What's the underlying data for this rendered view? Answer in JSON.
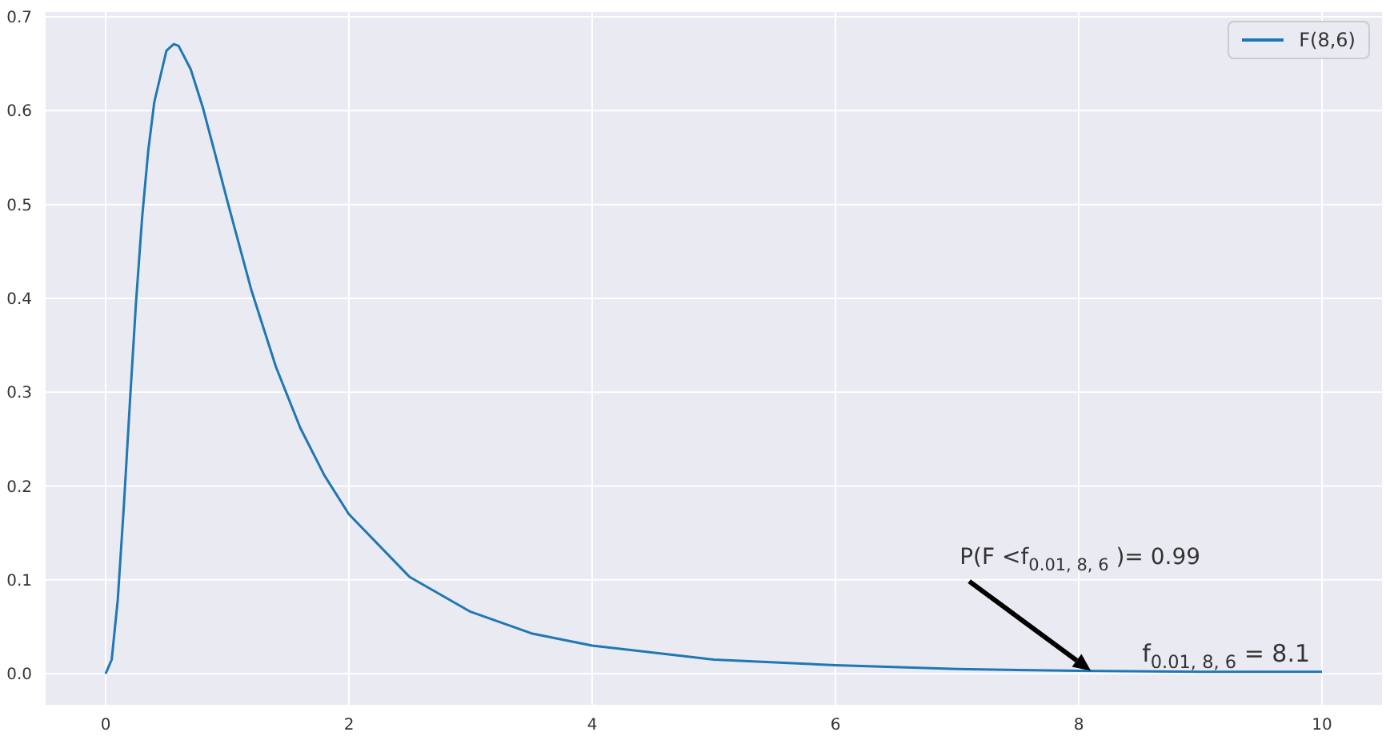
{
  "chart_data": {
    "type": "line",
    "x": [
      0,
      0.05,
      0.1,
      0.15,
      0.2,
      0.25,
      0.3,
      0.35,
      0.4,
      0.5,
      0.56,
      0.6,
      0.7,
      0.8,
      0.9,
      1.0,
      1.2,
      1.4,
      1.6,
      1.8,
      2.0,
      2.5,
      3,
      3.5,
      4,
      5,
      6,
      7,
      8,
      9,
      10
    ],
    "series": [
      {
        "name": "F(8,6)",
        "color": "#1f77b4",
        "values": [
          0,
          0.015,
          0.079,
          0.179,
          0.29,
          0.396,
          0.486,
          0.557,
          0.609,
          0.664,
          0.671,
          0.669,
          0.644,
          0.603,
          0.554,
          0.504,
          0.408,
          0.327,
          0.262,
          0.211,
          0.17,
          0.103,
          0.066,
          0.043,
          0.03,
          0.015,
          0.009,
          0.005,
          0.003,
          0.002,
          0.002
        ]
      }
    ],
    "xlim": [
      -0.5,
      10.5
    ],
    "xticks": [
      0,
      2,
      4,
      6,
      8,
      10
    ],
    "ylim": [
      -0.034,
      0.706
    ],
    "yticks": [
      {
        "value": 0,
        "label": "0.0"
      },
      {
        "value": 0.1,
        "label": "0.1"
      },
      {
        "value": 0.2,
        "label": "0.2"
      },
      {
        "value": 0.3,
        "label": "0.3"
      },
      {
        "value": 0.4,
        "label": "0.4"
      },
      {
        "value": 0.5,
        "label": "0.5"
      },
      {
        "value": 0.6,
        "label": "0.6"
      },
      {
        "value": 0.7,
        "label": "0.7"
      }
    ],
    "grid": true,
    "legend": "top right",
    "marker": "none",
    "line_style": "solid",
    "annotations": [
      "P(F <f$_{0.01, 8, 6}$)= 0.99",
      {
        "text": "f$_{0.01, 8, 6}$ = 8.1",
        "x": 8.1,
        "y": 0.003
      }
    ]
  }
}
